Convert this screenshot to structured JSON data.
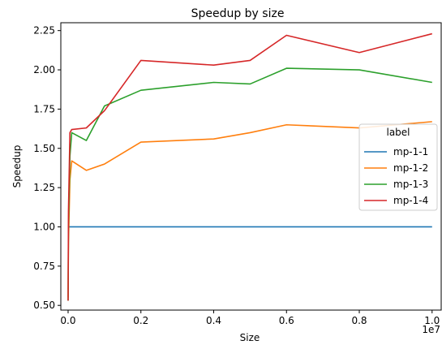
{
  "chart_data": {
    "type": "line",
    "title": "Speedup by size",
    "xlabel": "Size",
    "ylabel": "Speedup",
    "x_offset_label": "1e7",
    "xlim": [
      -200000,
      10250000
    ],
    "ylim": [
      0.47,
      2.3
    ],
    "x_ticks": [
      0,
      2000000,
      4000000,
      6000000,
      8000000,
      10000000
    ],
    "x_tick_labels": [
      "0.0",
      "0.2",
      "0.4",
      "0.6",
      "0.8",
      "1.0"
    ],
    "y_ticks": [
      0.5,
      0.75,
      1.0,
      1.25,
      1.5,
      1.75,
      2.0,
      2.25
    ],
    "y_tick_labels": [
      "0.50",
      "0.75",
      "1.00",
      "1.25",
      "1.50",
      "1.75",
      "2.00",
      "2.25"
    ],
    "grid": false,
    "legend_title": "label",
    "legend_position": "center-right",
    "series": [
      {
        "name": "mp-1-1",
        "color": "#1f77b4",
        "x": [
          0,
          10000,
          50000,
          100000,
          500000,
          1000000,
          2000000,
          4000000,
          5000000,
          6000000,
          8000000,
          10000000
        ],
        "y": [
          1.0,
          1.0,
          1.0,
          1.0,
          1.0,
          1.0,
          1.0,
          1.0,
          1.0,
          1.0,
          1.0,
          1.0
        ]
      },
      {
        "name": "mp-1-2",
        "color": "#ff7f0e",
        "x": [
          0,
          10000,
          50000,
          100000,
          500000,
          1000000,
          2000000,
          4000000,
          5000000,
          6000000,
          8000000,
          10000000
        ],
        "y": [
          0.55,
          0.9,
          1.3,
          1.42,
          1.36,
          1.4,
          1.54,
          1.56,
          1.6,
          1.65,
          1.63,
          1.67
        ]
      },
      {
        "name": "mp-1-3",
        "color": "#2ca02c",
        "x": [
          0,
          10000,
          50000,
          100000,
          500000,
          1000000,
          2000000,
          4000000,
          5000000,
          6000000,
          8000000,
          10000000
        ],
        "y": [
          0.53,
          1.0,
          1.45,
          1.6,
          1.55,
          1.77,
          1.87,
          1.92,
          1.91,
          2.01,
          2.0,
          1.92
        ]
      },
      {
        "name": "mp-1-4",
        "color": "#d62728",
        "x": [
          0,
          10000,
          50000,
          100000,
          500000,
          1000000,
          2000000,
          4000000,
          5000000,
          6000000,
          8000000,
          10000000
        ],
        "y": [
          0.53,
          1.1,
          1.6,
          1.62,
          1.63,
          1.74,
          2.06,
          2.03,
          2.06,
          2.22,
          2.11,
          2.23
        ]
      }
    ]
  }
}
